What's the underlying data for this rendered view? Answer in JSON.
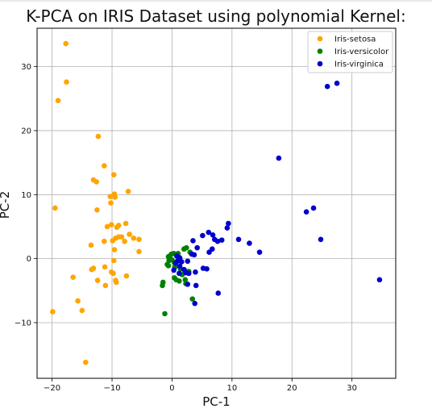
{
  "chart_data": {
    "type": "scatter",
    "title": "K-PCA on IRIS Dataset using polynomial Kernel:",
    "xlabel": "PC-1",
    "ylabel": "PC-2",
    "xlim": [
      -22.5,
      37.3
    ],
    "ylim": [
      -18.7,
      36.0
    ],
    "x_ticks": [
      -20,
      -10,
      0,
      10,
      20,
      30
    ],
    "y_ticks": [
      -10,
      0,
      10,
      20,
      30
    ],
    "x_tick_labels": [
      "−20",
      "−10",
      "0",
      "10",
      "20",
      "30"
    ],
    "y_tick_labels": [
      "−10",
      "0",
      "10",
      "20",
      "30"
    ],
    "grid": true,
    "legend_position": "top-right",
    "series": [
      {
        "name": "Iris-setosa",
        "color": "#ffa500",
        "points": [
          [
            -17.7,
            33.6
          ],
          [
            -17.6,
            27.6
          ],
          [
            -19.0,
            24.7
          ],
          [
            -12.3,
            19.1
          ],
          [
            -11.3,
            14.5
          ],
          [
            -9.7,
            13.1
          ],
          [
            -13.1,
            12.3
          ],
          [
            -12.6,
            12.0
          ],
          [
            -7.3,
            10.5
          ],
          [
            -10.3,
            9.7
          ],
          [
            -9.6,
            10.1
          ],
          [
            -9.5,
            9.6
          ],
          [
            -10.2,
            8.7
          ],
          [
            -19.5,
            7.9
          ],
          [
            -12.5,
            7.6
          ],
          [
            -7.7,
            5.5
          ],
          [
            -10.8,
            5.0
          ],
          [
            -10.1,
            5.3
          ],
          [
            -9.2,
            4.9
          ],
          [
            -8.9,
            5.2
          ],
          [
            -7.1,
            3.8
          ],
          [
            -6.4,
            3.2
          ],
          [
            -5.5,
            3.0
          ],
          [
            -8.9,
            3.4
          ],
          [
            -8.4,
            3.4
          ],
          [
            -9.4,
            3.2
          ],
          [
            -9.9,
            2.8
          ],
          [
            -11.3,
            2.7
          ],
          [
            -7.9,
            2.7
          ],
          [
            -13.5,
            2.1
          ],
          [
            -9.6,
            1.4
          ],
          [
            -5.5,
            1.1
          ],
          [
            -9.7,
            -0.3
          ],
          [
            -13.1,
            -1.5
          ],
          [
            -13.4,
            -1.7
          ],
          [
            -11.2,
            -1.3
          ],
          [
            -10.1,
            -2.1
          ],
          [
            -9.8,
            -2.3
          ],
          [
            -16.5,
            -2.9
          ],
          [
            -7.6,
            -2.7
          ],
          [
            -12.4,
            -3.4
          ],
          [
            -9.4,
            -3.4
          ],
          [
            -9.3,
            -3.7
          ],
          [
            -11.1,
            -4.2
          ],
          [
            -15.7,
            -6.6
          ],
          [
            -15.0,
            -8.1
          ],
          [
            -19.9,
            -8.3
          ],
          [
            -14.4,
            -16.2
          ]
        ]
      },
      {
        "name": "Iris-versicolor",
        "color": "#008000",
        "points": [
          [
            -0.6,
            0.3
          ],
          [
            -0.4,
            0.4
          ],
          [
            -0.1,
            0.7
          ],
          [
            0.3,
            0.8
          ],
          [
            1.0,
            0.8
          ],
          [
            1.2,
            0.2
          ],
          [
            2.0,
            1.5
          ],
          [
            2.4,
            1.7
          ],
          [
            3.0,
            1.0
          ],
          [
            -0.5,
            -0.3
          ],
          [
            0.0,
            -0.2
          ],
          [
            0.4,
            -0.6
          ],
          [
            -0.8,
            -0.9
          ],
          [
            -0.6,
            -1.1
          ],
          [
            0.5,
            -1.3
          ],
          [
            1.4,
            -1.6
          ],
          [
            2.2,
            -1.9
          ],
          [
            2.8,
            -2.0
          ],
          [
            1.7,
            -2.5
          ],
          [
            0.4,
            -3.0
          ],
          [
            0.7,
            -3.3
          ],
          [
            1.2,
            -3.5
          ],
          [
            2.2,
            -3.3
          ],
          [
            2.3,
            -3.9
          ],
          [
            -1.5,
            -3.7
          ],
          [
            -1.6,
            -4.2
          ],
          [
            -1.2,
            -8.6
          ],
          [
            3.4,
            -6.3
          ]
        ]
      },
      {
        "name": "Iris-virginica",
        "color": "#0000cd",
        "points": [
          [
            27.5,
            27.4
          ],
          [
            25.9,
            26.9
          ],
          [
            17.8,
            15.7
          ],
          [
            23.6,
            7.9
          ],
          [
            22.4,
            7.3
          ],
          [
            24.8,
            3.0
          ],
          [
            34.6,
            -3.3
          ],
          [
            9.4,
            5.5
          ],
          [
            9.2,
            4.8
          ],
          [
            6.1,
            4.1
          ],
          [
            6.8,
            3.7
          ],
          [
            5.1,
            3.6
          ],
          [
            3.5,
            2.8
          ],
          [
            7.1,
            3.0
          ],
          [
            7.6,
            2.7
          ],
          [
            8.3,
            2.9
          ],
          [
            11.1,
            3.0
          ],
          [
            12.9,
            2.4
          ],
          [
            14.6,
            1.0
          ],
          [
            6.7,
            1.5
          ],
          [
            6.2,
            1.0
          ],
          [
            4.2,
            1.7
          ],
          [
            3.3,
            0.7
          ],
          [
            3.7,
            0.6
          ],
          [
            0.8,
            0.4
          ],
          [
            1.3,
            0.1
          ],
          [
            1.6,
            -0.5
          ],
          [
            2.6,
            -0.4
          ],
          [
            0.6,
            -0.7
          ],
          [
            0.9,
            -0.4
          ],
          [
            1.3,
            -1.2
          ],
          [
            2.0,
            -1.7
          ],
          [
            3.9,
            -2.1
          ],
          [
            5.2,
            -1.5
          ],
          [
            5.8,
            -1.6
          ],
          [
            1.2,
            -2.3
          ],
          [
            2.3,
            -2.2
          ],
          [
            2.8,
            -2.3
          ],
          [
            0.3,
            -1.8
          ],
          [
            2.6,
            -4.0
          ],
          [
            4.0,
            -4.2
          ],
          [
            7.7,
            -5.4
          ],
          [
            3.8,
            -7.0
          ]
        ]
      }
    ]
  }
}
